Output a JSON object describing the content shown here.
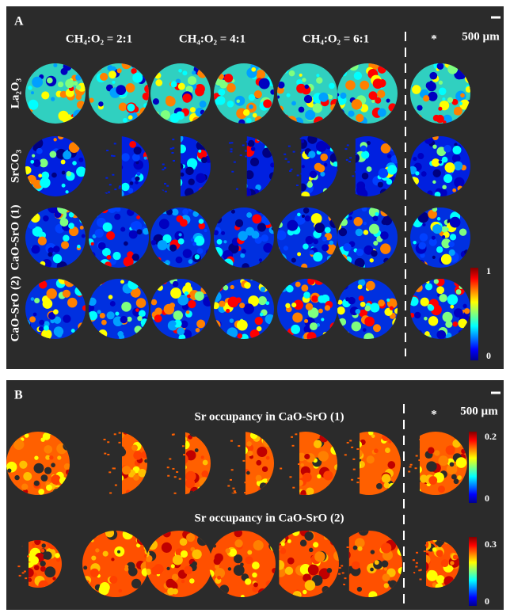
{
  "panel_a": {
    "label": "A",
    "column_headers": [
      "CH₄:O₂ = 2:1",
      "CH₄:O₂ = 4:1",
      "CH₄:O₂ = 6:1"
    ],
    "star": "*",
    "scale_bar": "500 µm",
    "row_labels": [
      "La₂O₃",
      "SrCO₃",
      "CaO-SrO (1)",
      "CaO-SrO (2)"
    ],
    "colorbar_ticks": [
      "1",
      "0"
    ]
  },
  "panel_b": {
    "label": "B",
    "titles": [
      "Sr occupancy in CaO-SrO (1)",
      "Sr occupancy in CaO-SrO (2)"
    ],
    "star": "*",
    "scale_bar": "500 µm",
    "colorbar_1_ticks": [
      "0.2",
      "0"
    ],
    "colorbar_2_ticks": [
      "0.3",
      "0"
    ]
  }
}
